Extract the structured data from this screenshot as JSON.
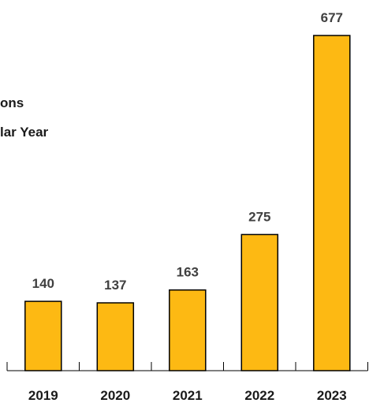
{
  "chart_data": {
    "type": "bar",
    "title_lines": [
      "ons",
      "lar Year"
    ],
    "categories": [
      "2019",
      "2020",
      "2021",
      "2022",
      "2023"
    ],
    "values": [
      140,
      137,
      163,
      275,
      677
    ],
    "data_labels": [
      "140",
      "137",
      "163",
      "275",
      "677"
    ],
    "bar_color": "#FDB913",
    "bar_edge_color": "#000000",
    "ylim": [
      0,
      677
    ],
    "grid": false,
    "legend": "none"
  }
}
